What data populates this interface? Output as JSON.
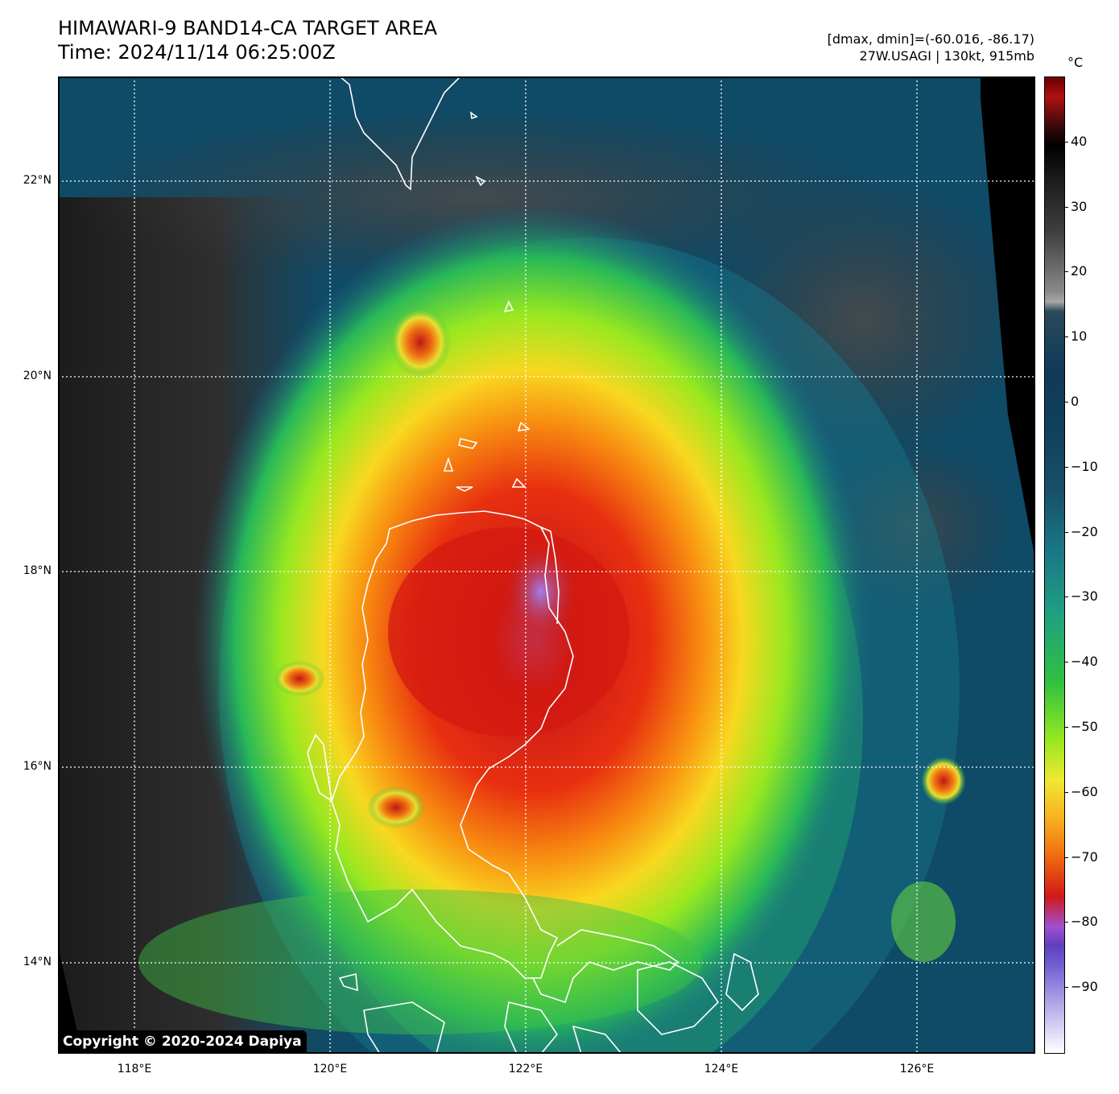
{
  "title": {
    "line1": "HIMAWARI-9 BAND14-CA TARGET AREA",
    "line2": "Time: 2024/11/14 06:25:00Z"
  },
  "meta": {
    "line1": "[dmax, dmin]=(-60.016, -86.17)",
    "line2": "27W.USAGI | 130kt, 915mb"
  },
  "copyright": "Copyright © 2020-2024 Dapiya",
  "map": {
    "lat_labels": [
      "22°N",
      "20°N",
      "18°N",
      "16°N",
      "14°N"
    ],
    "lon_labels": [
      "118°E",
      "120°E",
      "122°E",
      "124°E",
      "126°E"
    ],
    "grid": true,
    "grid_style": "dotted",
    "coastline_color": "#ffffff"
  },
  "colorbar": {
    "unit": "°C",
    "tick_labels": [
      "40",
      "30",
      "20",
      "10",
      "0",
      "−10",
      "−20",
      "−30",
      "−40",
      "−50",
      "−60",
      "−70",
      "−80",
      "−90"
    ],
    "min": -100,
    "max": 50
  }
}
